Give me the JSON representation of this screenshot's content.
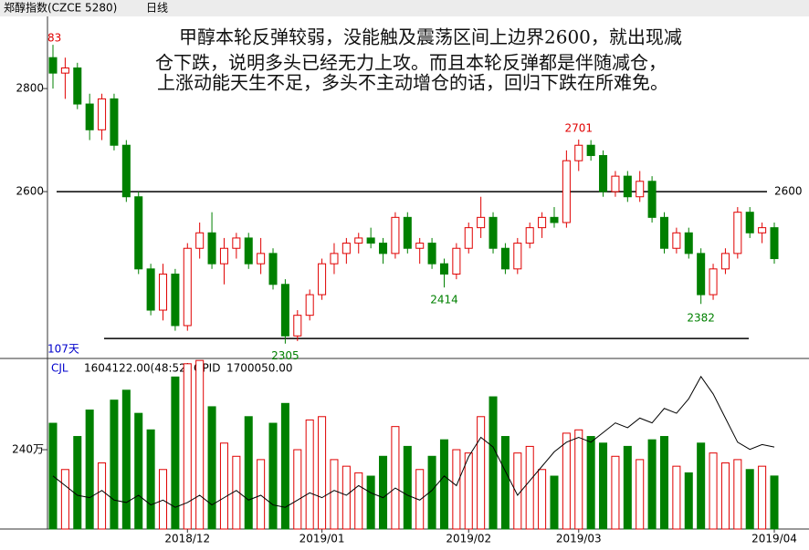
{
  "header": {
    "title": "郑醇指数(CZCE 5280)",
    "period": "日线"
  },
  "chart_data": {
    "type": "candlestick",
    "annotation": [
      "甲醇本轮反弹较弱，没能触及震荡区间上边界2600，就出现减",
      "仓下跌，说明多头已经无力上攻。而且本轮反弹都是伴随减仓，",
      "上涨动能天生不足，多头不主动增仓的话，回归下跌在所难免。"
    ],
    "edge_label": "83",
    "days_label": "107天",
    "categories": [
      null,
      null,
      null,
      null,
      null,
      null,
      null,
      null,
      null,
      null,
      null,
      "2018/12",
      null,
      null,
      null,
      null,
      null,
      null,
      null,
      null,
      null,
      null,
      "2019/01",
      null,
      null,
      null,
      null,
      null,
      null,
      null,
      null,
      null,
      null,
      null,
      "2019/02",
      null,
      null,
      null,
      null,
      null,
      null,
      null,
      null,
      "2019/03",
      null,
      null,
      null,
      null,
      null,
      null,
      null,
      null,
      null,
      null,
      null,
      null,
      null,
      null,
      null,
      "2019/04"
    ],
    "ohlc": [
      [
        2860,
        2885,
        2800,
        2830
      ],
      [
        2830,
        2860,
        2780,
        2840
      ],
      [
        2840,
        2850,
        2760,
        2770
      ],
      [
        2770,
        2790,
        2700,
        2720
      ],
      [
        2720,
        2790,
        2700,
        2780
      ],
      [
        2780,
        2790,
        2680,
        2690
      ],
      [
        2690,
        2700,
        2580,
        2590
      ],
      [
        2590,
        2600,
        2440,
        2450
      ],
      [
        2450,
        2460,
        2360,
        2370
      ],
      [
        2370,
        2460,
        2350,
        2440
      ],
      [
        2440,
        2450,
        2330,
        2340
      ],
      [
        2340,
        2500,
        2330,
        2490
      ],
      [
        2490,
        2540,
        2470,
        2520
      ],
      [
        2520,
        2560,
        2450,
        2460
      ],
      [
        2460,
        2510,
        2420,
        2490
      ],
      [
        2490,
        2520,
        2470,
        2510
      ],
      [
        2510,
        2520,
        2450,
        2460
      ],
      [
        2460,
        2510,
        2440,
        2480
      ],
      [
        2480,
        2490,
        2410,
        2420
      ],
      [
        2420,
        2430,
        2305,
        2320
      ],
      [
        2320,
        2370,
        2310,
        2360
      ],
      [
        2360,
        2410,
        2350,
        2400
      ],
      [
        2400,
        2470,
        2390,
        2460
      ],
      [
        2460,
        2500,
        2440,
        2480
      ],
      [
        2480,
        2510,
        2460,
        2500
      ],
      [
        2500,
        2520,
        2480,
        2510
      ],
      [
        2510,
        2530,
        2490,
        2500
      ],
      [
        2500,
        2510,
        2460,
        2480
      ],
      [
        2480,
        2560,
        2470,
        2550
      ],
      [
        2550,
        2560,
        2480,
        2490
      ],
      [
        2490,
        2510,
        2460,
        2500
      ],
      [
        2500,
        2510,
        2450,
        2460
      ],
      [
        2460,
        2470,
        2414,
        2440
      ],
      [
        2440,
        2500,
        2430,
        2490
      ],
      [
        2490,
        2540,
        2480,
        2530
      ],
      [
        2530,
        2590,
        2510,
        2550
      ],
      [
        2550,
        2560,
        2480,
        2490
      ],
      [
        2490,
        2500,
        2440,
        2450
      ],
      [
        2450,
        2510,
        2440,
        2500
      ],
      [
        2500,
        2540,
        2490,
        2530
      ],
      [
        2530,
        2560,
        2510,
        2550
      ],
      [
        2550,
        2570,
        2530,
        2540
      ],
      [
        2540,
        2680,
        2530,
        2660
      ],
      [
        2660,
        2701,
        2640,
        2690
      ],
      [
        2690,
        2700,
        2660,
        2670
      ],
      [
        2670,
        2680,
        2590,
        2600
      ],
      [
        2600,
        2640,
        2590,
        2630
      ],
      [
        2630,
        2640,
        2580,
        2590
      ],
      [
        2590,
        2640,
        2580,
        2620
      ],
      [
        2620,
        2630,
        2540,
        2550
      ],
      [
        2550,
        2560,
        2480,
        2490
      ],
      [
        2490,
        2530,
        2480,
        2520
      ],
      [
        2520,
        2530,
        2470,
        2480
      ],
      [
        2480,
        2490,
        2382,
        2400
      ],
      [
        2400,
        2460,
        2390,
        2450
      ],
      [
        2450,
        2490,
        2440,
        2480
      ],
      [
        2480,
        2570,
        2470,
        2560
      ],
      [
        2560,
        2570,
        2510,
        2520
      ],
      [
        2520,
        2540,
        2500,
        2530
      ],
      [
        2530,
        2540,
        2460,
        2470
      ]
    ],
    "up_color": "#e00000",
    "down_color": "#008000",
    "ylim": [
      2278,
      2940
    ],
    "yticks": [
      2600,
      2800
    ],
    "hlines": [
      2600,
      2315
    ],
    "volume": {
      "name": "CJL",
      "label": "1604122.00(48:52)",
      "values": [
        3200000,
        1800000,
        2800000,
        3600000,
        2000000,
        3900000,
        4200000,
        3500000,
        3000000,
        1800000,
        4600000,
        5000000,
        5100000,
        3700000,
        2600000,
        2200000,
        3400000,
        2100000,
        3200000,
        3800000,
        2400000,
        3300000,
        3400000,
        2100000,
        1900000,
        1700000,
        1600000,
        2200000,
        3100000,
        2500000,
        1800000,
        2200000,
        2700000,
        2400000,
        2300000,
        3400000,
        4000000,
        2800000,
        2300000,
        2500000,
        1800000,
        1600000,
        2900000,
        3000000,
        2800000,
        2600000,
        2200000,
        2500000,
        2100000,
        2700000,
        2800000,
        1900000,
        1700000,
        2600000,
        2300000,
        2000000,
        2100000,
        1800000,
        1900000,
        1604122
      ],
      "ylim": [
        0,
        5050000
      ],
      "yticks": [
        {
          "value": 2400000,
          "label": "240万"
        }
      ]
    },
    "opid": {
      "name": "OPID",
      "label": "1700050.00",
      "color": "#000000",
      "values": [
        1100000,
        900000,
        700000,
        650000,
        800000,
        600000,
        550000,
        700000,
        500000,
        600000,
        450000,
        550000,
        700000,
        500000,
        650000,
        800000,
        600000,
        700000,
        500000,
        450000,
        600000,
        750000,
        650000,
        800000,
        700000,
        900000,
        750000,
        650000,
        850000,
        700000,
        600000,
        800000,
        1100000,
        900000,
        1500000,
        1900000,
        1700000,
        1200000,
        700000,
        1000000,
        1300000,
        1600000,
        1800000,
        1900000,
        1800000,
        2000000,
        2200000,
        2100000,
        2300000,
        2200000,
        2500000,
        2400000,
        2700000,
        3160000,
        2800000,
        2300000,
        1800000,
        1650000,
        1750000,
        1700050
      ],
      "y2lim": [
        0,
        3460000
      ]
    }
  }
}
